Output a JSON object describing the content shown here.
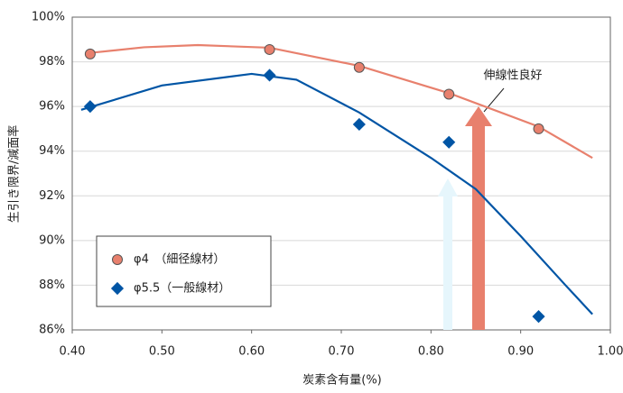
{
  "chart_data": {
    "type": "scatter",
    "xlabel": "炭素含有量(%)",
    "ylabel": "生引き限界/減面率",
    "xlim": [
      0.4,
      1.0
    ],
    "xticks": [
      {
        "value": 0.4,
        "label": "0.40"
      },
      {
        "value": 0.5,
        "label": "0.50"
      },
      {
        "value": 0.6,
        "label": "0.60"
      },
      {
        "value": 0.7,
        "label": "0.70"
      },
      {
        "value": 0.8,
        "label": "0.80"
      },
      {
        "value": 0.9,
        "label": "0.90"
      },
      {
        "value": 1.0,
        "label": "1.00"
      }
    ],
    "ylim": [
      86,
      100
    ],
    "yticks": [
      {
        "value": 86,
        "label": "86%"
      },
      {
        "value": 88,
        "label": "88%"
      },
      {
        "value": 90,
        "label": "90%"
      },
      {
        "value": 92,
        "label": "92%"
      },
      {
        "value": 94,
        "label": "94%"
      },
      {
        "value": 96,
        "label": "96%"
      },
      {
        "value": 98,
        "label": "98%"
      },
      {
        "value": 100,
        "label": "100%"
      }
    ],
    "grid": true,
    "annotation": "伸線性良好",
    "series": [
      {
        "name": "φ4　（細径線材）",
        "color": "#e8806d",
        "marker": "circle",
        "x": [
          0.42,
          0.62,
          0.72,
          0.82,
          0.92
        ],
        "values": [
          98.35,
          98.55,
          97.75,
          96.55,
          95.0
        ],
        "curve": {
          "x": [
            0.42,
            0.48,
            0.54,
            0.62,
            0.72,
            0.82,
            0.92,
            0.98
          ],
          "values": [
            98.4,
            98.65,
            98.75,
            98.63,
            97.82,
            96.6,
            95.1,
            93.7
          ]
        }
      },
      {
        "name": "φ5.5（一般線材）",
        "color": "#0055a5",
        "marker": "diamond",
        "x": [
          0.42,
          0.62,
          0.72,
          0.82,
          0.92
        ],
        "values": [
          96.0,
          97.4,
          95.2,
          94.4,
          86.6
        ],
        "curve": {
          "x": [
            0.41,
            0.5,
            0.6,
            0.65,
            0.72,
            0.8,
            0.85,
            0.9,
            0.95,
            0.98
          ],
          "values": [
            95.85,
            96.94,
            97.46,
            97.2,
            95.73,
            93.7,
            92.3,
            90.2,
            88.0,
            86.7
          ]
        }
      }
    ]
  }
}
